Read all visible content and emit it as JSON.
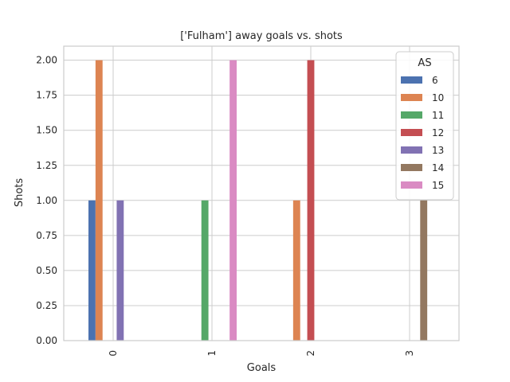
{
  "chart_data": {
    "type": "bar",
    "title": "['Fulham'] away goals vs. shots",
    "xlabel": "Goals",
    "ylabel": "Shots",
    "categories": [
      "0",
      "1",
      "2",
      "3"
    ],
    "ylim": [
      0,
      2.1
    ],
    "yticks": [
      "0.00",
      "0.25",
      "0.50",
      "0.75",
      "1.00",
      "1.25",
      "1.50",
      "1.75",
      "2.00"
    ],
    "grid": true,
    "legend": {
      "title": "AS",
      "placement": "top-right"
    },
    "series": [
      {
        "name": "6",
        "color": "#4c72b0",
        "values": [
          1,
          0,
          0,
          0
        ]
      },
      {
        "name": "10",
        "color": "#dd8452",
        "values": [
          2,
          0,
          1,
          0
        ]
      },
      {
        "name": "11",
        "color": "#55a868",
        "values": [
          0,
          1,
          0,
          0
        ]
      },
      {
        "name": "12",
        "color": "#c44e52",
        "values": [
          0,
          0,
          2,
          0
        ]
      },
      {
        "name": "13",
        "color": "#8172b3",
        "values": [
          1,
          0,
          0,
          0
        ]
      },
      {
        "name": "14",
        "color": "#937860",
        "values": [
          0,
          0,
          0,
          1
        ]
      },
      {
        "name": "15",
        "color": "#da8bc3",
        "values": [
          0,
          2,
          0,
          0
        ]
      }
    ]
  }
}
